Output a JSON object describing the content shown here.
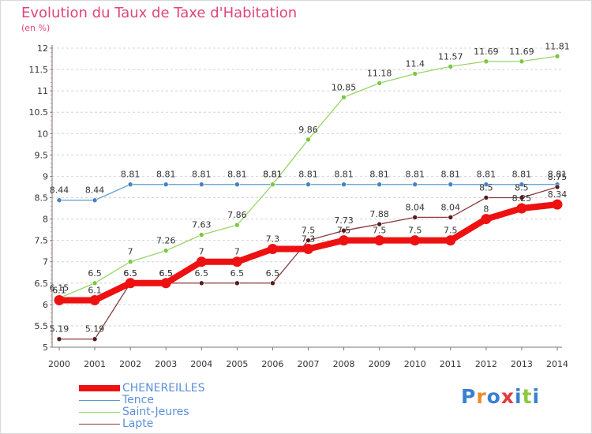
{
  "title": "Evolution du Taux de Taxe d'Habitation",
  "subtitle": "(en %)",
  "logo": {
    "text": "Proxiti",
    "letter_colors": [
      "#3a7fd0",
      "#f08a24",
      "#3a7fd0",
      "#e23b3b",
      "#3a7fd0",
      "#8cc83c",
      "#3a7fd0"
    ]
  },
  "chart_data": {
    "type": "line",
    "x": [
      2000,
      2001,
      2002,
      2003,
      2004,
      2005,
      2006,
      2007,
      2008,
      2009,
      2010,
      2011,
      2012,
      2013,
      2014
    ],
    "x_tick_labels": [
      "2000",
      "2001",
      "2002",
      "2003",
      "2004",
      "2005",
      "2006",
      "2007",
      "2008",
      "2009",
      "2010",
      "2011",
      "2012",
      "2013",
      "2014"
    ],
    "ylim": [
      5,
      12
    ],
    "y_tick_labels": [
      "5",
      "5.5",
      "6",
      "6.5",
      "7",
      "7.5",
      "8",
      "8.5",
      "9",
      "9.5",
      "10",
      "10.5",
      "11",
      "11.5",
      "12"
    ],
    "grid": "horizontal dashed",
    "legend_position": "bottom-left",
    "series": [
      {
        "name": "CHENEREILLES",
        "color": "#ee1111",
        "values": [
          6.1,
          6.1,
          6.5,
          6.5,
          7,
          7,
          7.3,
          7.3,
          7.5,
          7.5,
          7.5,
          7.5,
          8,
          8.25,
          8.34
        ],
        "labels": [
          "6.1",
          "6.1",
          "6.5",
          "6.5",
          "7",
          "7",
          "7.3",
          "7.3",
          "7.5",
          "7.5",
          "7.5",
          "7.5",
          "8",
          "8.25",
          "8.34"
        ]
      },
      {
        "name": "Tence",
        "color": "#5b9bd0",
        "values": [
          8.44,
          8.44,
          8.81,
          8.81,
          8.81,
          8.81,
          8.81,
          8.81,
          8.81,
          8.81,
          8.81,
          8.81,
          8.81,
          8.81,
          8.81
        ],
        "labels": [
          "8.44",
          "8.44",
          "8.81",
          "8.81",
          "8.81",
          "8.81",
          "8.81",
          "8.81",
          "8.81",
          "8.81",
          "8.81",
          "8.81",
          "8.81",
          "8.81",
          "8.81"
        ]
      },
      {
        "name": "Saint-Jeures",
        "color": "#9ad46a",
        "values": [
          6.15,
          6.5,
          7,
          7.26,
          7.63,
          7.86,
          8.81,
          9.86,
          10.85,
          11.18,
          11.4,
          11.57,
          11.69,
          11.69,
          11.81
        ],
        "labels": [
          "6.15",
          "6.5",
          "7",
          "7.26",
          "7.63",
          "7.86",
          "8.81",
          "9.86",
          "10.85",
          "11.18",
          "11.4",
          "11.57",
          "11.69",
          "11.69",
          "11.81"
        ]
      },
      {
        "name": "Lapte",
        "color": "#8a3a3e",
        "values": [
          5.19,
          5.19,
          6.5,
          6.5,
          6.5,
          6.5,
          6.5,
          7.5,
          7.73,
          7.88,
          8.04,
          8.04,
          8.5,
          8.5,
          8.75
        ],
        "labels": [
          "5.19",
          "5.19",
          "6.5",
          "6.5",
          "6.5",
          "6.5",
          "6.5",
          "7.5",
          "7.73",
          "7.88",
          "8.04",
          "8.04",
          "8.5",
          "8.5",
          "8.75"
        ]
      }
    ]
  }
}
